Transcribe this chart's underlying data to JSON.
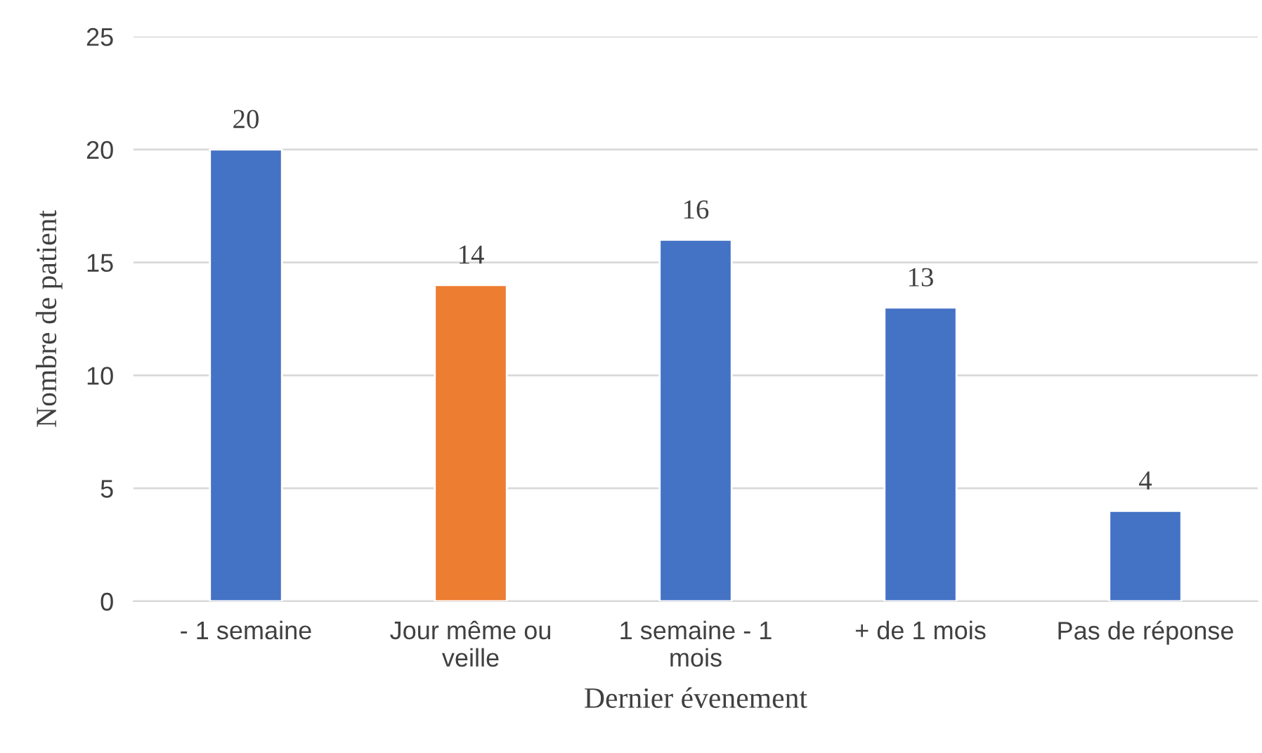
{
  "chart_data": {
    "type": "bar",
    "xlabel": "Dernier évenement",
    "ylabel": "Nombre de patient",
    "categories": [
      "- 1 semaine",
      "Jour même ou\nveille",
      "1 semaine - 1\nmois",
      "+ de 1 mois",
      "Pas de réponse"
    ],
    "values": [
      20,
      14,
      16,
      13,
      4
    ],
    "colors": [
      "#4472c4",
      "#ed7d31",
      "#4472c4",
      "#4472c4",
      "#4472c4"
    ],
    "ylim": [
      0,
      25
    ],
    "yticks": [
      0,
      5,
      10,
      15,
      20,
      25
    ],
    "grid": "y",
    "data_labels": true
  }
}
